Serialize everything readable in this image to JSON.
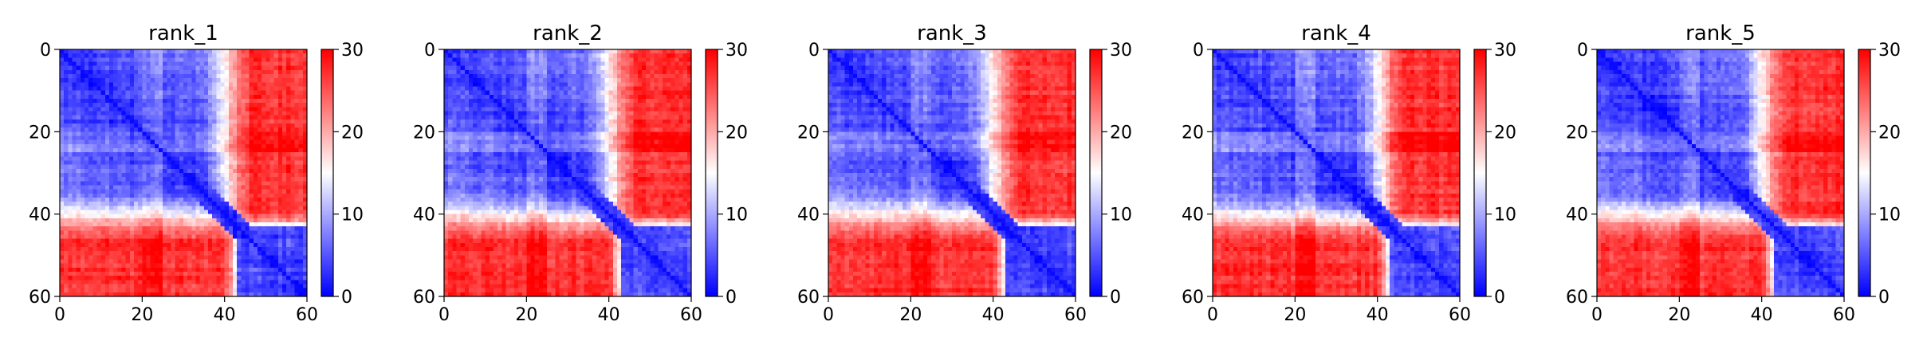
{
  "chart_data": [
    {
      "type": "heatmap",
      "title": "rank_1",
      "x_ticks": [
        0,
        20,
        40,
        60
      ],
      "y_ticks": [
        0,
        20,
        40,
        60
      ],
      "xlim": [
        0,
        60
      ],
      "ylim": [
        60,
        0
      ],
      "grid_size": 60,
      "block_boundary": 43,
      "dark_band": [
        20,
        24
      ],
      "colorbar": {
        "range": [
          0,
          30
        ],
        "ticks": [
          0,
          10,
          20,
          30
        ],
        "colormap": "bwr"
      }
    },
    {
      "type": "heatmap",
      "title": "rank_2",
      "x_ticks": [
        0,
        20,
        40,
        60
      ],
      "y_ticks": [
        0,
        20,
        40,
        60
      ],
      "xlim": [
        0,
        60
      ],
      "ylim": [
        60,
        0
      ],
      "grid_size": 60,
      "block_boundary": 43,
      "dark_band": [
        20,
        24
      ],
      "colorbar": {
        "range": [
          0,
          30
        ],
        "ticks": [
          0,
          10,
          20,
          30
        ],
        "colormap": "bwr"
      }
    },
    {
      "type": "heatmap",
      "title": "rank_3",
      "x_ticks": [
        0,
        20,
        40,
        60
      ],
      "y_ticks": [
        0,
        20,
        40,
        60
      ],
      "xlim": [
        0,
        60
      ],
      "ylim": [
        60,
        0
      ],
      "grid_size": 60,
      "block_boundary": 43,
      "dark_band": [
        20,
        24
      ],
      "colorbar": {
        "range": [
          0,
          30
        ],
        "ticks": [
          0,
          10,
          20,
          30
        ],
        "colormap": "bwr"
      }
    },
    {
      "type": "heatmap",
      "title": "rank_4",
      "x_ticks": [
        0,
        20,
        40,
        60
      ],
      "y_ticks": [
        0,
        20,
        40,
        60
      ],
      "xlim": [
        0,
        60
      ],
      "ylim": [
        60,
        0
      ],
      "grid_size": 60,
      "block_boundary": 43,
      "dark_band": [
        20,
        24
      ],
      "colorbar": {
        "range": [
          0,
          30
        ],
        "ticks": [
          0,
          10,
          20,
          30
        ],
        "colormap": "bwr"
      }
    },
    {
      "type": "heatmap",
      "title": "rank_5",
      "x_ticks": [
        0,
        20,
        40,
        60
      ],
      "y_ticks": [
        0,
        20,
        40,
        60
      ],
      "xlim": [
        0,
        60
      ],
      "ylim": [
        60,
        0
      ],
      "grid_size": 60,
      "block_boundary": 43,
      "dark_band": [
        20,
        24
      ],
      "colorbar": {
        "range": [
          0,
          30
        ],
        "ticks": [
          0,
          10,
          20,
          30
        ],
        "colormap": "bwr"
      }
    }
  ],
  "colors": {
    "low": "#0000ff",
    "mid": "#ffffff",
    "high": "#ff0000"
  }
}
